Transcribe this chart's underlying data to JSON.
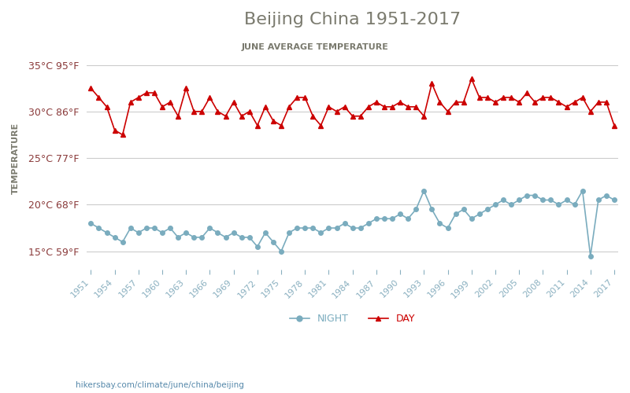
{
  "title": "Beijing China 1951-2017",
  "subtitle": "JUNE AVERAGE TEMPERATURE",
  "ylabel": "TEMPERATURE",
  "years": [
    1951,
    1952,
    1953,
    1954,
    1955,
    1956,
    1957,
    1958,
    1959,
    1960,
    1961,
    1962,
    1963,
    1964,
    1965,
    1966,
    1967,
    1968,
    1969,
    1970,
    1971,
    1972,
    1973,
    1974,
    1975,
    1976,
    1977,
    1978,
    1979,
    1980,
    1981,
    1982,
    1983,
    1984,
    1985,
    1986,
    1987,
    1988,
    1989,
    1990,
    1991,
    1992,
    1993,
    1994,
    1995,
    1996,
    1997,
    1998,
    1999,
    2000,
    2001,
    2002,
    2003,
    2004,
    2005,
    2006,
    2007,
    2008,
    2009,
    2010,
    2011,
    2012,
    2013,
    2014,
    2015,
    2016,
    2017
  ],
  "day_temps": [
    32.5,
    31.5,
    30.5,
    28.0,
    27.5,
    31.0,
    31.5,
    32.0,
    32.0,
    30.5,
    31.0,
    29.5,
    32.5,
    30.0,
    30.0,
    31.5,
    30.0,
    29.5,
    31.0,
    29.5,
    30.0,
    28.5,
    30.5,
    29.0,
    28.5,
    30.5,
    31.5,
    31.5,
    29.5,
    28.5,
    30.5,
    30.0,
    30.5,
    29.5,
    29.5,
    30.5,
    31.0,
    30.5,
    30.5,
    31.0,
    30.5,
    30.5,
    29.5,
    33.0,
    31.0,
    30.0,
    31.0,
    31.0,
    33.5,
    31.5,
    31.5,
    31.0,
    31.5,
    31.5,
    31.0,
    32.0,
    31.0,
    31.5,
    31.5,
    31.0,
    30.5,
    31.0,
    31.5,
    30.0,
    31.0,
    31.0,
    28.5
  ],
  "night_temps": [
    18.0,
    17.5,
    17.0,
    16.5,
    16.0,
    17.5,
    17.0,
    17.5,
    17.5,
    17.0,
    17.5,
    16.5,
    17.0,
    16.5,
    16.5,
    17.5,
    17.0,
    16.5,
    17.0,
    16.5,
    16.5,
    15.5,
    17.0,
    16.0,
    15.0,
    17.0,
    17.5,
    17.5,
    17.5,
    17.0,
    17.5,
    17.5,
    18.0,
    17.5,
    17.5,
    18.0,
    18.5,
    18.5,
    18.5,
    19.0,
    18.5,
    19.5,
    21.5,
    19.5,
    18.0,
    17.5,
    19.0,
    19.5,
    18.5,
    19.0,
    19.5,
    20.0,
    20.5,
    20.0,
    20.5,
    21.0,
    21.0,
    20.5,
    20.5,
    20.0,
    20.5,
    20.0,
    21.5,
    14.5,
    20.5,
    21.0,
    20.5
  ],
  "day_color": "#cc0000",
  "night_color": "#7aacbe",
  "title_color": "#7a7a6e",
  "subtitle_color": "#7a7a6e",
  "ylabel_color": "#7a7a6e",
  "tick_color": "#8a3a3a",
  "axis_color": "#cccccc",
  "ylim": [
    13,
    37
  ],
  "yticks": [
    15,
    20,
    25,
    30,
    35
  ],
  "ytick_labels": [
    "15°C 59°F",
    "20°C 68°F",
    "25°C 77°F",
    "30°C 86°F",
    "35°C 95°F"
  ],
  "footer": "hikersbay.com/climate/june/china/beijing",
  "legend_night": "NIGHT",
  "legend_day": "DAY",
  "marker_size": 4
}
